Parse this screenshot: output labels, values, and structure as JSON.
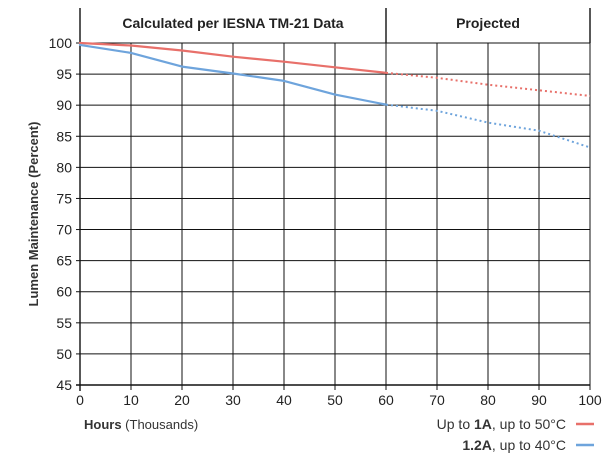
{
  "chart_data": {
    "type": "line",
    "header_left": "Calculated per IESNA TM-21 Data",
    "header_right": "Projected",
    "ylabel": "Lumen Maintenance (Percent)",
    "xlabel_bold": "Hours",
    "xlabel_rest": " (Thousands)",
    "xlim": [
      0,
      100
    ],
    "ylim": [
      45,
      100
    ],
    "x_ticks": [
      0,
      10,
      20,
      30,
      40,
      50,
      60,
      70,
      80,
      90,
      100
    ],
    "y_ticks": [
      45,
      50,
      55,
      60,
      65,
      70,
      75,
      80,
      85,
      90,
      95,
      100
    ],
    "projection_start_x": 60,
    "grid": true,
    "legend_position": "bottom-right",
    "series": [
      {
        "name_prefix": "Up to ",
        "name_bold": "1A",
        "name_suffix": ", up to  50°C",
        "color": "#e8706a",
        "calculated": [
          [
            0,
            100
          ],
          [
            10,
            99.6
          ],
          [
            20,
            98.8
          ],
          [
            30,
            97.8
          ],
          [
            40,
            97.0
          ],
          [
            50,
            96.1
          ],
          [
            60,
            95.2
          ]
        ],
        "projected": [
          [
            60,
            95.2
          ],
          [
            70,
            94.4
          ],
          [
            80,
            93.3
          ],
          [
            90,
            92.4
          ],
          [
            100,
            91.5
          ]
        ]
      },
      {
        "name_prefix": "",
        "name_bold": "1.2A",
        "name_suffix": ", up to  40°C",
        "color": "#6ea4dc",
        "calculated": [
          [
            0,
            99.7
          ],
          [
            10,
            98.4
          ],
          [
            20,
            96.2
          ],
          [
            30,
            95.1
          ],
          [
            40,
            93.9
          ],
          [
            50,
            91.7
          ],
          [
            60,
            90.1
          ]
        ],
        "projected": [
          [
            60,
            90.1
          ],
          [
            70,
            89.1
          ],
          [
            80,
            87.2
          ],
          [
            90,
            85.9
          ],
          [
            100,
            83.2
          ]
        ]
      }
    ]
  }
}
